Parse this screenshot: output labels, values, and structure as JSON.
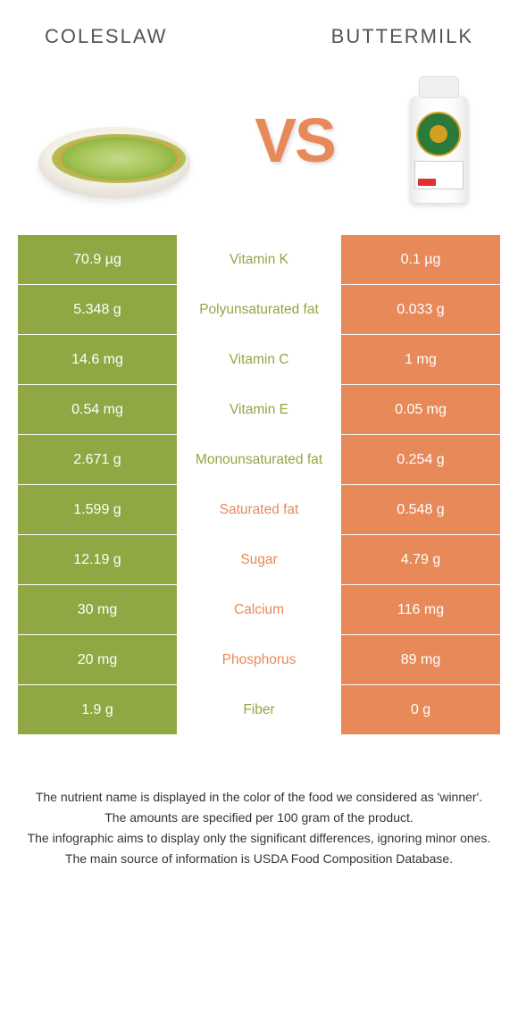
{
  "header": {
    "left_title": "COLESLAW",
    "right_title": "BUTTERMILK"
  },
  "vs_label": "VS",
  "colors": {
    "green": "#8fa843",
    "orange": "#e8895a",
    "text_gray": "#555555",
    "bg": "#ffffff"
  },
  "table": {
    "left_bg": "#8fa843",
    "right_bg": "#e8895a",
    "rows": [
      {
        "left": "70.9 µg",
        "label": "Vitamin K",
        "right": "0.1 µg",
        "winner": "left"
      },
      {
        "left": "5.348 g",
        "label": "Polyunsaturated fat",
        "right": "0.033 g",
        "winner": "left"
      },
      {
        "left": "14.6 mg",
        "label": "Vitamin C",
        "right": "1 mg",
        "winner": "left"
      },
      {
        "left": "0.54 mg",
        "label": "Vitamin E",
        "right": "0.05 mg",
        "winner": "left"
      },
      {
        "left": "2.671 g",
        "label": "Monounsaturated fat",
        "right": "0.254 g",
        "winner": "left"
      },
      {
        "left": "1.599 g",
        "label": "Saturated fat",
        "right": "0.548 g",
        "winner": "right"
      },
      {
        "left": "12.19 g",
        "label": "Sugar",
        "right": "4.79 g",
        "winner": "right"
      },
      {
        "left": "30 mg",
        "label": "Calcium",
        "right": "116 mg",
        "winner": "right"
      },
      {
        "left": "20 mg",
        "label": "Phosphorus",
        "right": "89 mg",
        "winner": "right"
      },
      {
        "left": "1.9 g",
        "label": "Fiber",
        "right": "0 g",
        "winner": "left"
      }
    ]
  },
  "footer": {
    "line1": "The nutrient name is displayed in the color of the food we considered as 'winner'.",
    "line2": "The amounts are specified per 100 gram of the product.",
    "line3": "The infographic aims to display only the significant differences, ignoring minor ones.",
    "line4": "The main source of information is USDA Food Composition Database."
  }
}
